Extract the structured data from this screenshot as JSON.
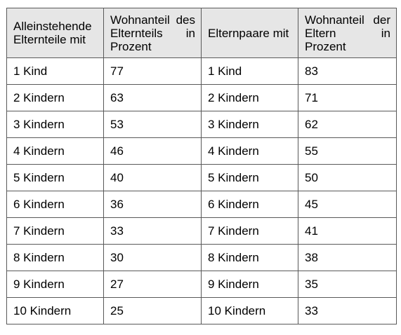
{
  "table": {
    "headers": [
      "Alleinstehende Elternteile mit",
      "Wohnanteil des Elternteils in Prozent",
      "Elternpaare mit",
      "Wohnanteil der Eltern in Prozent"
    ],
    "rows": [
      [
        "1 Kind",
        "77",
        "1 Kind",
        "83"
      ],
      [
        "2 Kindern",
        "63",
        "2 Kindern",
        "71"
      ],
      [
        "3 Kindern",
        "53",
        "3 Kindern",
        "62"
      ],
      [
        "4 Kindern",
        "46",
        "4 Kindern",
        "55"
      ],
      [
        "5 Kindern",
        "40",
        "5 Kindern",
        "50"
      ],
      [
        "6 Kindern",
        "36",
        "6 Kindern",
        "45"
      ],
      [
        "7 Kindern",
        "33",
        "7 Kindern",
        "41"
      ],
      [
        "8 Kindern",
        "30",
        "8 Kindern",
        "38"
      ],
      [
        "9 Kindern",
        "27",
        "9 Kindern",
        "35"
      ],
      [
        "10 Kindern",
        "25",
        "10 Kindern",
        "33"
      ]
    ]
  }
}
